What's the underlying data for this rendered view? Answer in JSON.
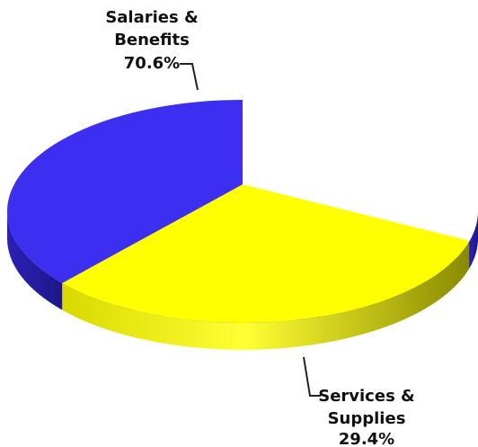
{
  "chart_data": {
    "type": "pie",
    "style": "3d",
    "title": "",
    "slices": [
      {
        "name_lines": [
          "Salaries &",
          "Benefits"
        ],
        "value_label": "70.6%",
        "value": 70.6,
        "color": "#3c2ff0",
        "side_color": "#2a1fb0"
      },
      {
        "name_lines": [
          "Services &",
          "Supplies"
        ],
        "value_label": "29.4%",
        "value": 29.4,
        "color": "#ffff00",
        "side_color": "#b8b800"
      }
    ],
    "legend": "none"
  }
}
